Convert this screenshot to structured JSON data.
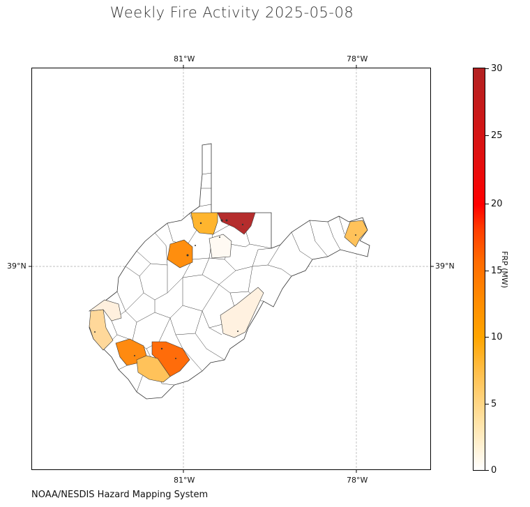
{
  "title": "Weekly Fire Activity 2025-05-08",
  "credit": "NOAA/NESDIS Hazard Mapping System",
  "axes": {
    "top_ticks": [
      "81°W",
      "78°W"
    ],
    "bottom_ticks": [
      "81°W",
      "78°W"
    ],
    "left_ticks": [
      "39°N"
    ],
    "right_ticks": [
      "39°N"
    ]
  },
  "colorbar": {
    "label": "FRP (MW)",
    "ticks": [
      "0",
      "5",
      "10",
      "15",
      "20",
      "25",
      "30"
    ],
    "min": 0,
    "max": 30,
    "colors": [
      "#ffffff",
      "#ffe3a6",
      "#ffa500",
      "#ff6a00",
      "#ff0000",
      "#b22222"
    ]
  },
  "chart_data": {
    "type": "heatmap",
    "title": "Weekly Fire Activity 2025-05-08",
    "region": "West Virginia counties",
    "value_label": "FRP (MW)",
    "range": [
      0,
      30
    ],
    "gridlines": true,
    "colorbar_position": "right",
    "highlighted_counties": [
      {
        "area": "northern panhandle east",
        "frp": 28
      },
      {
        "area": "northern north-central",
        "frp": 8
      },
      {
        "area": "eastern panhandle",
        "frp": 6
      },
      {
        "area": "central west",
        "frp": 11
      },
      {
        "area": "north-central small",
        "frp": 1
      },
      {
        "area": "southwest west edge",
        "frp": 4
      },
      {
        "area": "southwest lower",
        "frp": 1
      },
      {
        "area": "southern central A",
        "frp": 12
      },
      {
        "area": "southern central B",
        "frp": 13
      },
      {
        "area": "southern central C",
        "frp": 6
      },
      {
        "area": "southeast",
        "frp": 1
      }
    ]
  }
}
